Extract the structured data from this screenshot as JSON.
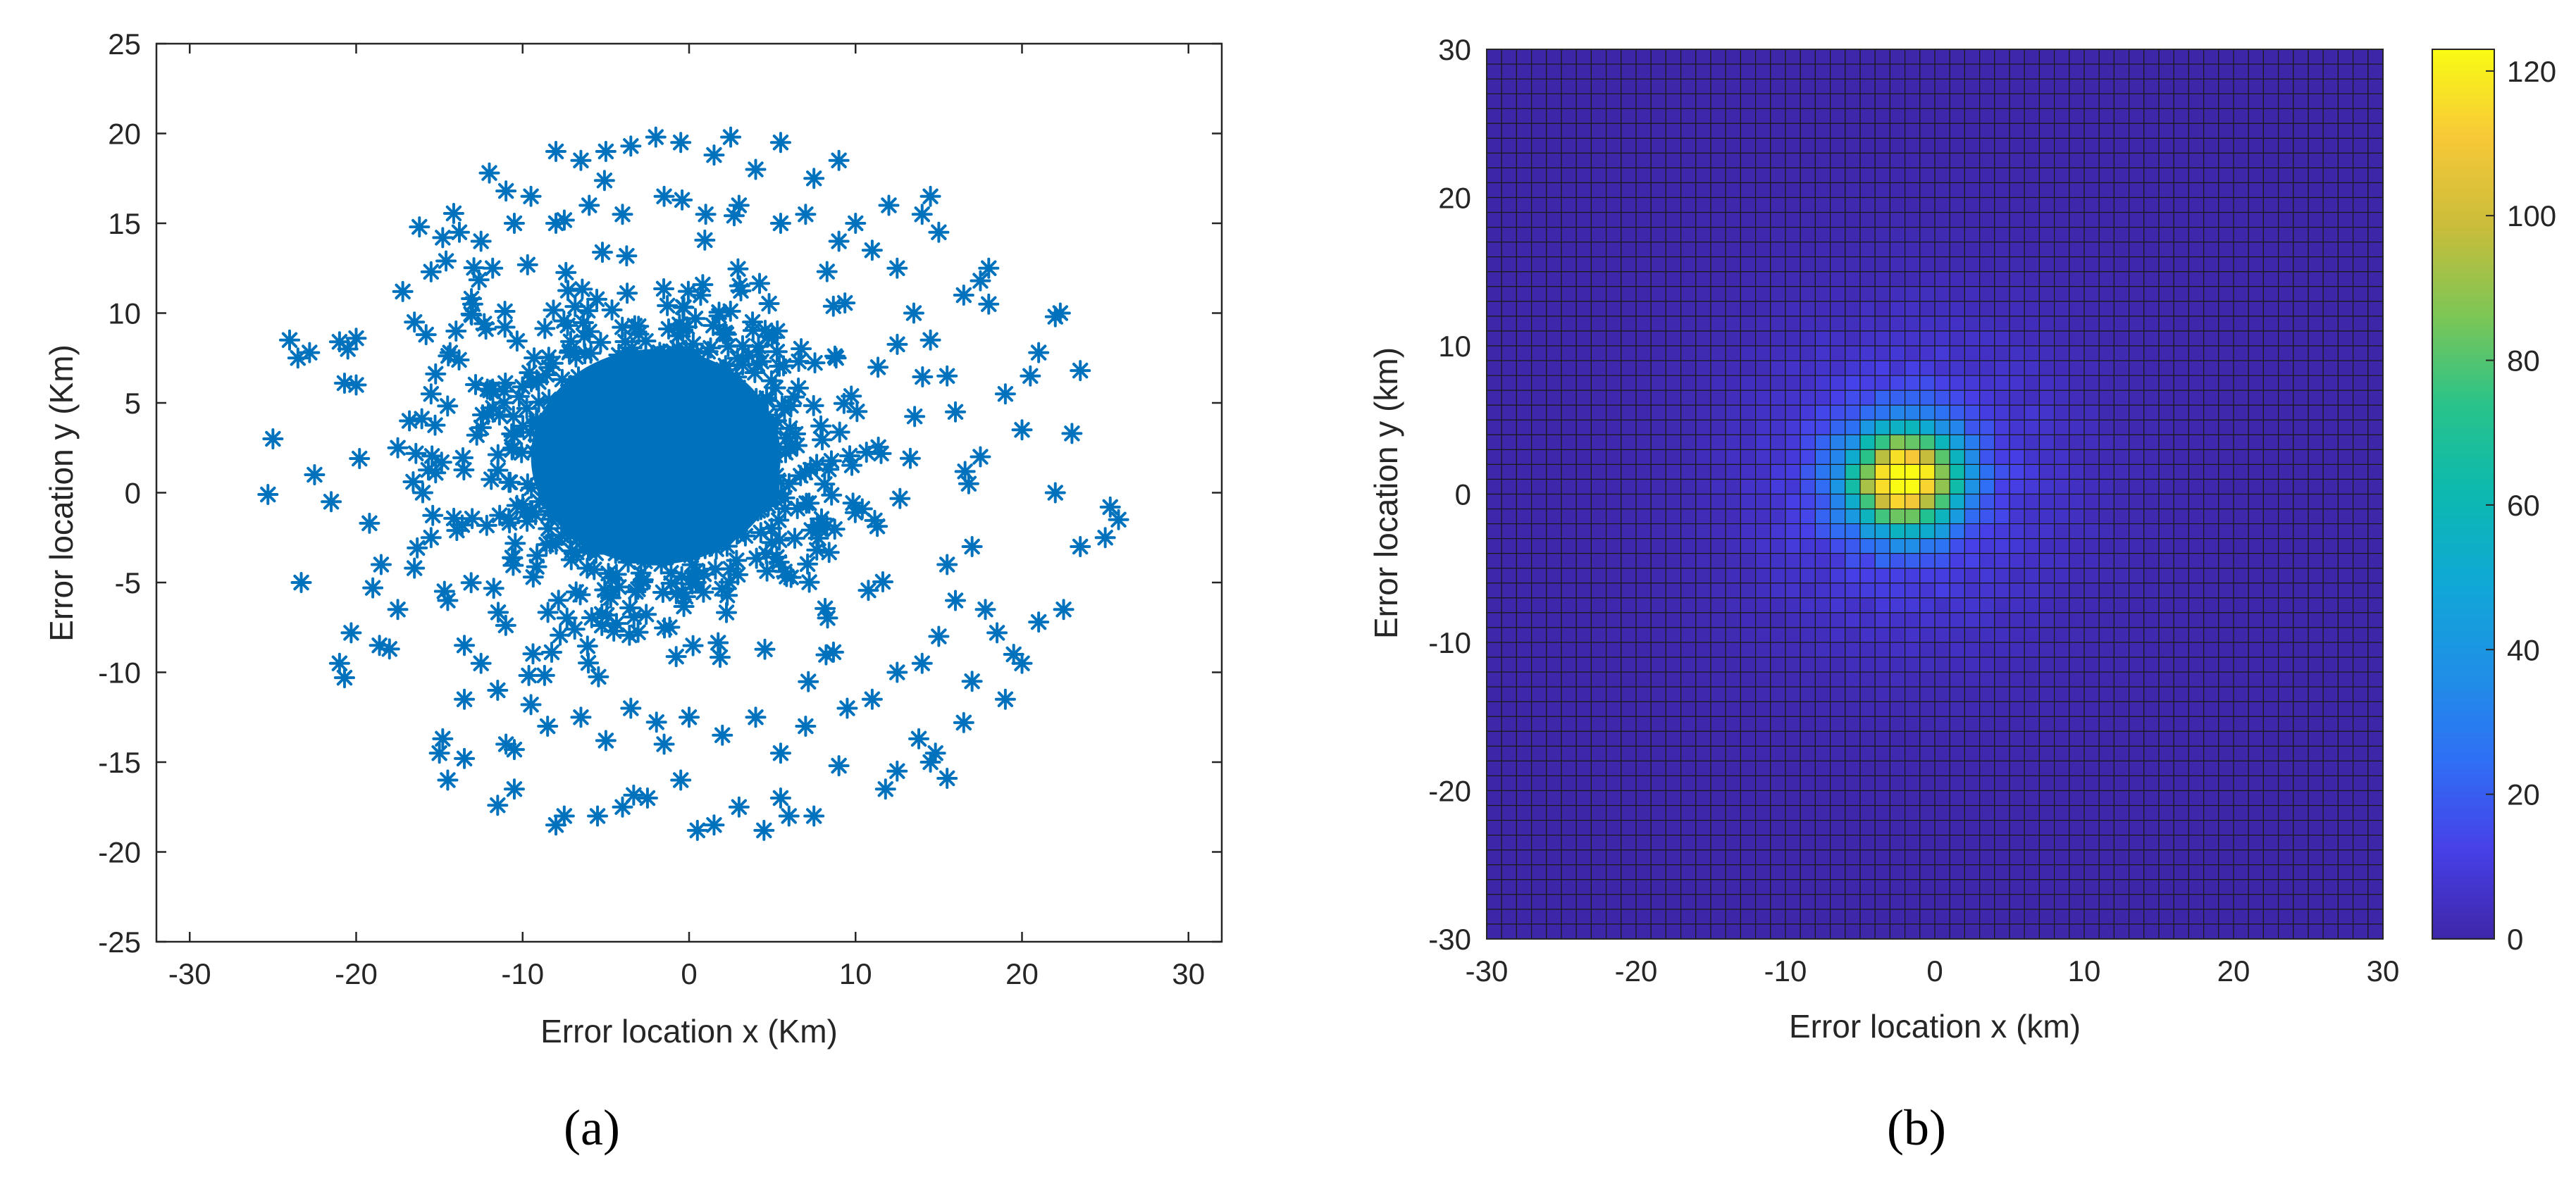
{
  "chart_data": [
    {
      "type": "scatter",
      "panel_label": "(a)",
      "marker": "asterisk",
      "color": "#0072bd",
      "xlabel": "Error location x (Km)",
      "ylabel": "Error location y (Km)",
      "xlim": [
        -32,
        32
      ],
      "ylim": [
        -25,
        25
      ],
      "xticks": [
        -30,
        -20,
        -10,
        0,
        10,
        20,
        30
      ],
      "yticks": [
        -25,
        -20,
        -15,
        -10,
        -5,
        0,
        5,
        10,
        15,
        20,
        25
      ],
      "points": [
        [
          -25,
          3.0
        ],
        [
          -25.3,
          -0.1
        ],
        [
          -23.3,
          -5.0
        ],
        [
          -24.0,
          8.5
        ],
        [
          -23.5,
          7.5
        ],
        [
          -22.8,
          7.8
        ],
        [
          -22.5,
          1.0
        ],
        [
          -21.5,
          -0.5
        ],
        [
          -21.0,
          8.4
        ],
        [
          -20.5,
          8.0
        ],
        [
          -20.0,
          8.6
        ],
        [
          -20.7,
          6.1
        ],
        [
          -20.0,
          6.0
        ],
        [
          -19.8,
          1.9
        ],
        [
          -19.2,
          -1.7
        ],
        [
          -19.0,
          -5.3
        ],
        [
          -18.5,
          -4.0
        ],
        [
          -18.6,
          -8.5
        ],
        [
          -20.7,
          -10.3
        ],
        [
          -21.0,
          -9.5
        ],
        [
          -20.3,
          -7.8
        ],
        [
          -18.0,
          -8.7
        ],
        [
          -17.5,
          -6.5
        ],
        [
          -17.2,
          11.2
        ],
        [
          -16.5,
          9.5
        ],
        [
          -15.8,
          8.8
        ],
        [
          -16.2,
          14.8
        ],
        [
          -15.5,
          12.3
        ],
        [
          -14.6,
          12.9
        ],
        [
          -14.8,
          14.2
        ],
        [
          -13.8,
          14.5
        ],
        [
          -15.0,
          -14.5
        ],
        [
          -14.5,
          -16.0
        ],
        [
          -13.5,
          -14.8
        ],
        [
          -13.5,
          -11.5
        ],
        [
          -14.8,
          -13.7
        ],
        [
          -11.5,
          -17.4
        ],
        [
          -11.0,
          -14.0
        ],
        [
          -10.5,
          -14.3
        ],
        [
          -10.5,
          -16.5
        ],
        [
          -8.0,
          -18.5
        ],
        [
          -7.5,
          -18.0
        ],
        [
          -5.5,
          -18.0
        ],
        [
          -4.0,
          -17.5
        ],
        [
          -2.5,
          -17.0
        ],
        [
          -0.5,
          -16.0
        ],
        [
          0.5,
          -18.8
        ],
        [
          1.5,
          -18.5
        ],
        [
          3.0,
          -17.5
        ],
        [
          4.5,
          -18.8
        ],
        [
          6.0,
          -18.0
        ],
        [
          7.5,
          -18.0
        ],
        [
          5.5,
          -17.0
        ],
        [
          9.0,
          -15.2
        ],
        [
          11.8,
          -16.5
        ],
        [
          12.5,
          -15.5
        ],
        [
          14.5,
          -15.0
        ],
        [
          15.5,
          -15.9
        ],
        [
          14.8,
          -14.5
        ],
        [
          13.8,
          -13.7
        ],
        [
          16.5,
          -12.8
        ],
        [
          17.0,
          -10.5
        ],
        [
          19.0,
          -11.5
        ],
        [
          19.5,
          -9.0
        ],
        [
          20.0,
          -9.5
        ],
        [
          17.8,
          -6.5
        ],
        [
          18.5,
          -7.8
        ],
        [
          21.0,
          -7.2
        ],
        [
          22.5,
          -6.5
        ],
        [
          23.5,
          -3.0
        ],
        [
          25.0,
          -2.5
        ],
        [
          25.8,
          -1.5
        ],
        [
          25.3,
          -0.8
        ],
        [
          22.0,
          0.0
        ],
        [
          20.0,
          3.5
        ],
        [
          19.0,
          5.5
        ],
        [
          20.5,
          6.5
        ],
        [
          21.0,
          7.8
        ],
        [
          22.0,
          9.8
        ],
        [
          23.5,
          6.8
        ],
        [
          23.0,
          3.3
        ],
        [
          22.3,
          10.0
        ],
        [
          18.0,
          10.5
        ],
        [
          17.5,
          11.8
        ],
        [
          18.0,
          12.5
        ],
        [
          16.5,
          11.0
        ],
        [
          14.0,
          15.5
        ],
        [
          14.5,
          16.5
        ],
        [
          15.0,
          14.5
        ],
        [
          12.0,
          16.0
        ],
        [
          10.0,
          15.0
        ],
        [
          9.0,
          18.5
        ],
        [
          7.5,
          17.5
        ],
        [
          5.5,
          19.5
        ],
        [
          4.0,
          18.0
        ],
        [
          2.5,
          19.8
        ],
        [
          1.5,
          18.8
        ],
        [
          -0.5,
          19.5
        ],
        [
          -2.0,
          19.8
        ],
        [
          -3.5,
          19.3
        ],
        [
          -5.0,
          19.0
        ],
        [
          -6.5,
          18.5
        ],
        [
          -8.0,
          19.0
        ],
        [
          -9.5,
          16.5
        ],
        [
          -11.0,
          16.8
        ],
        [
          -12.0,
          17.8
        ],
        [
          -10.5,
          15.0
        ],
        [
          -12.5,
          14.0
        ],
        [
          -11.8,
          12.5
        ],
        [
          -13.0,
          10.5
        ],
        [
          -14.0,
          9.0
        ],
        [
          -15.5,
          5.5
        ],
        [
          -16.8,
          4.0
        ],
        [
          -17.5,
          2.5
        ],
        [
          -16.0,
          0.0
        ],
        [
          -15.5,
          -2.5
        ],
        [
          -16.5,
          -4.2
        ],
        [
          -14.5,
          -6.0
        ],
        [
          -13.5,
          -8.5
        ],
        [
          -12.5,
          -9.5
        ],
        [
          -11.5,
          -11.0
        ],
        [
          -9.5,
          -11.8
        ],
        [
          -8.5,
          -13.0
        ],
        [
          -6.5,
          -12.5
        ],
        [
          -5.0,
          -13.8
        ],
        [
          -3.5,
          -12.0
        ],
        [
          -1.5,
          -14.0
        ],
        [
          0.0,
          -12.5
        ],
        [
          2.0,
          -13.5
        ],
        [
          4.0,
          -12.5
        ],
        [
          5.5,
          -14.5
        ],
        [
          7.0,
          -13.0
        ],
        [
          9.5,
          -12.0
        ],
        [
          11.0,
          -11.5
        ],
        [
          12.5,
          -10.0
        ],
        [
          14.0,
          -9.5
        ],
        [
          15.0,
          -8.0
        ],
        [
          16.0,
          -6.0
        ],
        [
          15.5,
          -4.0
        ],
        [
          17.0,
          -3.0
        ],
        [
          16.8,
          0.5
        ],
        [
          17.5,
          2.0
        ],
        [
          16.0,
          4.5
        ],
        [
          15.5,
          6.5
        ],
        [
          14.5,
          8.5
        ],
        [
          13.5,
          10.0
        ],
        [
          12.5,
          12.5
        ],
        [
          11.0,
          13.5
        ],
        [
          9.0,
          14.0
        ],
        [
          7.0,
          15.5
        ],
        [
          5.5,
          15.0
        ],
        [
          3.0,
          16.0
        ],
        [
          1.0,
          15.5
        ],
        [
          -1.5,
          16.5
        ],
        [
          -4.0,
          15.5
        ],
        [
          -6.0,
          16.0
        ],
        [
          -8.0,
          15.0
        ]
      ],
      "dense_core": {
        "center": [
          -2.0,
          2.0
        ],
        "radii": [
          7.5,
          6.0
        ],
        "spread": [
          9.5,
          7.5
        ]
      }
    },
    {
      "type": "heatmap",
      "panel_label": "(b)",
      "xlabel": "Error location x (km)",
      "ylabel": "Error location y (km)",
      "xlim": [
        -30,
        30
      ],
      "ylim": [
        -30,
        30
      ],
      "xticks": [
        -30,
        -20,
        -10,
        0,
        10,
        20,
        30
      ],
      "yticks": [
        -30,
        -20,
        -10,
        0,
        10,
        20,
        30
      ],
      "grid": true,
      "bins": 60,
      "peak_location": [
        -2.0,
        1.0
      ],
      "peak_value": 120,
      "colorbar": {
        "colormap": "parula",
        "min": 0,
        "max": 123,
        "ticks": [
          0,
          20,
          40,
          60,
          80,
          100,
          120
        ]
      }
    }
  ]
}
